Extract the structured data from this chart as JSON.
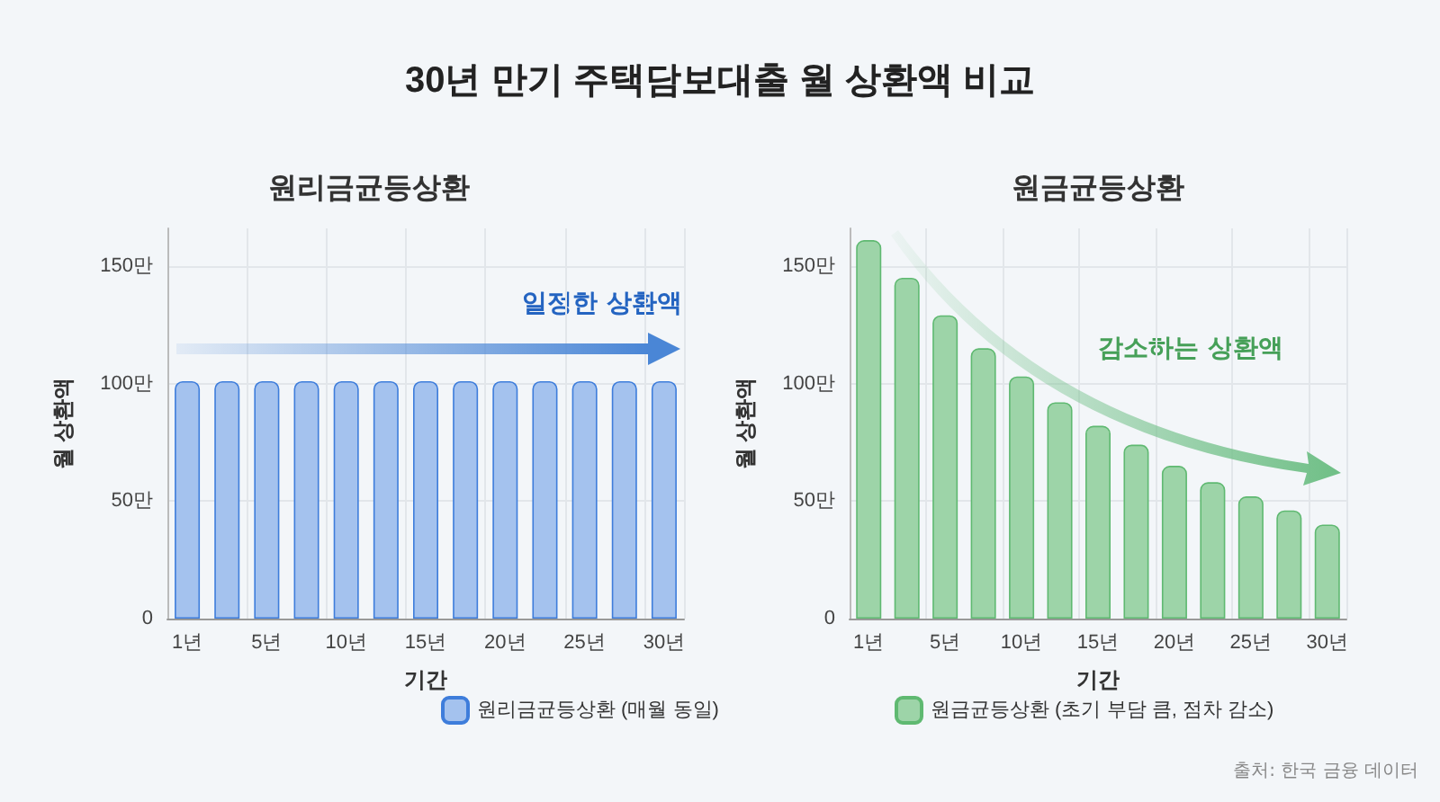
{
  "chart_data": [
    {
      "type": "bar",
      "title": "30년 만기 주택담보대출 월 상환액 비교",
      "subtitle": "원리금균등상환",
      "xlabel": "기간",
      "ylabel": "월 상환액",
      "categories": [
        "1년",
        null,
        "5년",
        null,
        "10년",
        null,
        "15년",
        null,
        "20년",
        null,
        "25년",
        null,
        "30년"
      ],
      "series": [
        {
          "name": "원리금균등상환 (매월 동일)",
          "color": "#a4c2ee",
          "values": [
            101,
            101,
            101,
            101,
            101,
            101,
            101,
            101,
            101,
            101,
            101,
            101,
            101
          ]
        }
      ],
      "ylim": [
        0,
        166
      ],
      "yticks": [
        0,
        {
          "value": 50,
          "label": "50만"
        },
        {
          "value": 100,
          "label": "100만"
        },
        {
          "value": 150,
          "label": "150만"
        }
      ],
      "annotations": [
        "일정한 상환액"
      ],
      "grid": true,
      "legend": "bottom"
    },
    {
      "type": "bar",
      "subtitle": "원금균등상환",
      "xlabel": "기간",
      "ylabel": "월 상환액",
      "categories": [
        "1년",
        null,
        "5년",
        null,
        "10년",
        null,
        "15년",
        null,
        "20년",
        null,
        "25년",
        null,
        "30년"
      ],
      "series": [
        {
          "name": "원금균등상환 (초기 부담 큼, 점차 감소)",
          "color": "#9dd4a8",
          "values": [
            161,
            145,
            129,
            115,
            103,
            92,
            82,
            74,
            65,
            58,
            52,
            46,
            40
          ]
        }
      ],
      "ylim": [
        0,
        166
      ],
      "yticks": [
        0,
        {
          "value": 50,
          "label": "50만"
        },
        {
          "value": 100,
          "label": "100만"
        },
        {
          "value": 150,
          "label": "150만"
        }
      ],
      "annotations": [
        "감소하는 상환액",
        "출처: 한국 금융 데이터"
      ],
      "grid": true,
      "legend": "bottom"
    }
  ]
}
